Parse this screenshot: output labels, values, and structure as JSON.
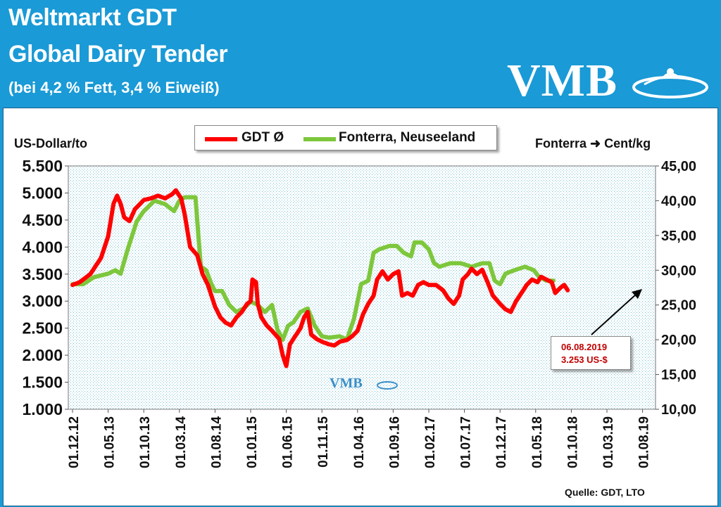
{
  "header": {
    "title1": "Weltmarkt GDT",
    "title2": "Global Dairy Tender",
    "subtitle": "(bei 4,2 % Fett, 3,4 % Eiweiß)",
    "logo": "VMB"
  },
  "chart_data": {
    "type": "line",
    "ylabel_left": "US-Dollar/to",
    "ylabel_right_prefix": "Fonterra",
    "ylabel_right_unit": "Cent/kg",
    "ylim_left": [
      1000,
      5500
    ],
    "ylim_right": [
      10,
      45
    ],
    "yticks_left": [
      "5.500",
      "5.000",
      "4.500",
      "4.000",
      "3.500",
      "3.000",
      "2.500",
      "2.000",
      "1.500",
      "1.000"
    ],
    "yticks_right": [
      "45,00",
      "40,00",
      "35,00",
      "30,00",
      "25,00",
      "20,00",
      "15,00",
      "10,00"
    ],
    "xticks": [
      "01.12.12",
      "01.05.13",
      "01.10.13",
      "01.03.14",
      "01.08.14",
      "01.01.15",
      "01.06.15",
      "01.11.15",
      "01.04.16",
      "01.09.16",
      "01.02.17",
      "01.07.17",
      "01.12.17",
      "01.05.18",
      "01.10.18",
      "01.03.19",
      "01.08.19"
    ],
    "legend_position": "top-center",
    "grid": false,
    "series": [
      {
        "name": "GDT Ø",
        "color": "#ff0000",
        "axis": "left",
        "points": [
          [
            0,
            3300
          ],
          [
            0.2,
            3350
          ],
          [
            0.5,
            3500
          ],
          [
            0.8,
            3800
          ],
          [
            1.0,
            4200
          ],
          [
            1.15,
            4800
          ],
          [
            1.25,
            4950
          ],
          [
            1.35,
            4800
          ],
          [
            1.45,
            4550
          ],
          [
            1.6,
            4480
          ],
          [
            1.75,
            4700
          ],
          [
            1.9,
            4800
          ],
          [
            2.0,
            4870
          ],
          [
            2.2,
            4900
          ],
          [
            2.4,
            4950
          ],
          [
            2.6,
            4900
          ],
          [
            2.8,
            4980
          ],
          [
            2.9,
            5050
          ],
          [
            3.05,
            4900
          ],
          [
            3.15,
            4600
          ],
          [
            3.3,
            4000
          ],
          [
            3.5,
            3850
          ],
          [
            3.65,
            3500
          ],
          [
            3.8,
            3300
          ],
          [
            3.9,
            3100
          ],
          [
            4.0,
            2900
          ],
          [
            4.15,
            2700
          ],
          [
            4.3,
            2600
          ],
          [
            4.45,
            2550
          ],
          [
            4.6,
            2700
          ],
          [
            4.75,
            2800
          ],
          [
            4.9,
            2950
          ],
          [
            5.0,
            3000
          ],
          [
            5.05,
            3400
          ],
          [
            5.15,
            3350
          ],
          [
            5.2,
            2950
          ],
          [
            5.3,
            2700
          ],
          [
            5.45,
            2550
          ],
          [
            5.6,
            2450
          ],
          [
            5.8,
            2300
          ],
          [
            5.9,
            2000
          ],
          [
            6.0,
            1800
          ],
          [
            6.1,
            2200
          ],
          [
            6.2,
            2300
          ],
          [
            6.4,
            2500
          ],
          [
            6.5,
            2700
          ],
          [
            6.6,
            2800
          ],
          [
            6.7,
            2380
          ],
          [
            6.85,
            2300
          ],
          [
            7.0,
            2250
          ],
          [
            7.2,
            2200
          ],
          [
            7.35,
            2180
          ],
          [
            7.5,
            2250
          ],
          [
            7.7,
            2280
          ],
          [
            7.85,
            2350
          ],
          [
            8.0,
            2450
          ],
          [
            8.15,
            2750
          ],
          [
            8.3,
            2950
          ],
          [
            8.45,
            3100
          ],
          [
            8.55,
            3400
          ],
          [
            8.7,
            3550
          ],
          [
            8.85,
            3400
          ],
          [
            9.0,
            3500
          ],
          [
            9.15,
            3550
          ],
          [
            9.25,
            3100
          ],
          [
            9.4,
            3150
          ],
          [
            9.55,
            3100
          ],
          [
            9.7,
            3300
          ],
          [
            9.85,
            3350
          ],
          [
            10.0,
            3300
          ],
          [
            10.2,
            3300
          ],
          [
            10.4,
            3200
          ],
          [
            10.55,
            3050
          ],
          [
            10.7,
            2950
          ],
          [
            10.85,
            3100
          ],
          [
            10.95,
            3400
          ],
          [
            11.1,
            3500
          ],
          [
            11.2,
            3600
          ],
          [
            11.35,
            3500
          ],
          [
            11.5,
            3580
          ],
          [
            11.65,
            3350
          ],
          [
            11.8,
            3100
          ],
          [
            12.0,
            2950
          ],
          [
            12.15,
            2850
          ],
          [
            12.3,
            2800
          ],
          [
            12.45,
            3000
          ],
          [
            12.6,
            3150
          ],
          [
            12.75,
            3300
          ],
          [
            12.9,
            3400
          ],
          [
            13.05,
            3350
          ],
          [
            13.15,
            3450
          ],
          [
            13.3,
            3400
          ],
          [
            13.45,
            3350
          ],
          [
            13.55,
            3150
          ],
          [
            13.7,
            3250
          ],
          [
            13.8,
            3300
          ],
          [
            13.9,
            3200
          ]
        ]
      },
      {
        "name": "Fonterra, Neuseeland",
        "color": "#7dc73c",
        "axis": "right",
        "points": [
          [
            0,
            28.0
          ],
          [
            0.3,
            28.0
          ],
          [
            0.6,
            29.0
          ],
          [
            1.0,
            29.5
          ],
          [
            1.2,
            30.0
          ],
          [
            1.35,
            29.5
          ],
          [
            1.55,
            33.0
          ],
          [
            1.8,
            37.0
          ],
          [
            2.0,
            38.5
          ],
          [
            2.3,
            40.0
          ],
          [
            2.6,
            39.5
          ],
          [
            2.85,
            38.5
          ],
          [
            3.0,
            40.0
          ],
          [
            3.15,
            40.5
          ],
          [
            3.3,
            40.5
          ],
          [
            3.45,
            40.5
          ],
          [
            3.6,
            30.5
          ],
          [
            3.75,
            30.0
          ],
          [
            3.9,
            28.0
          ],
          [
            4.0,
            27.0
          ],
          [
            4.2,
            27.0
          ],
          [
            4.4,
            25.0
          ],
          [
            4.6,
            24.0
          ],
          [
            4.8,
            24.5
          ],
          [
            5.0,
            25.5
          ],
          [
            5.2,
            25.0
          ],
          [
            5.4,
            24.0
          ],
          [
            5.6,
            25.0
          ],
          [
            5.75,
            21.5
          ],
          [
            5.9,
            20.0
          ],
          [
            6.05,
            22.0
          ],
          [
            6.2,
            22.5
          ],
          [
            6.4,
            24.0
          ],
          [
            6.6,
            24.5
          ],
          [
            6.8,
            22.0
          ],
          [
            7.0,
            20.5
          ],
          [
            7.2,
            20.3
          ],
          [
            7.5,
            20.5
          ],
          [
            7.7,
            20.0
          ],
          [
            7.9,
            23.0
          ],
          [
            8.1,
            28.0
          ],
          [
            8.3,
            28.5
          ],
          [
            8.45,
            32.5
          ],
          [
            8.6,
            33.0
          ],
          [
            8.9,
            33.5
          ],
          [
            9.1,
            33.5
          ],
          [
            9.3,
            32.5
          ],
          [
            9.5,
            32.0
          ],
          [
            9.6,
            34.0
          ],
          [
            9.8,
            34.0
          ],
          [
            10.0,
            33.0
          ],
          [
            10.15,
            31.0
          ],
          [
            10.3,
            30.5
          ],
          [
            10.6,
            31.0
          ],
          [
            10.9,
            31.0
          ],
          [
            11.2,
            30.5
          ],
          [
            11.5,
            31.0
          ],
          [
            11.7,
            31.0
          ],
          [
            11.85,
            28.5
          ],
          [
            12.0,
            28.0
          ],
          [
            12.15,
            29.5
          ],
          [
            12.4,
            30.0
          ],
          [
            12.7,
            30.5
          ],
          [
            12.95,
            30.0
          ],
          [
            13.1,
            29.0
          ],
          [
            13.3,
            28.5
          ],
          [
            13.5,
            28.5
          ]
        ]
      }
    ],
    "annotation": {
      "date": "06.08.2019",
      "value": "3.253  US-$"
    }
  },
  "source": "Quelle: GDT, LTO",
  "watermark": "VMB"
}
